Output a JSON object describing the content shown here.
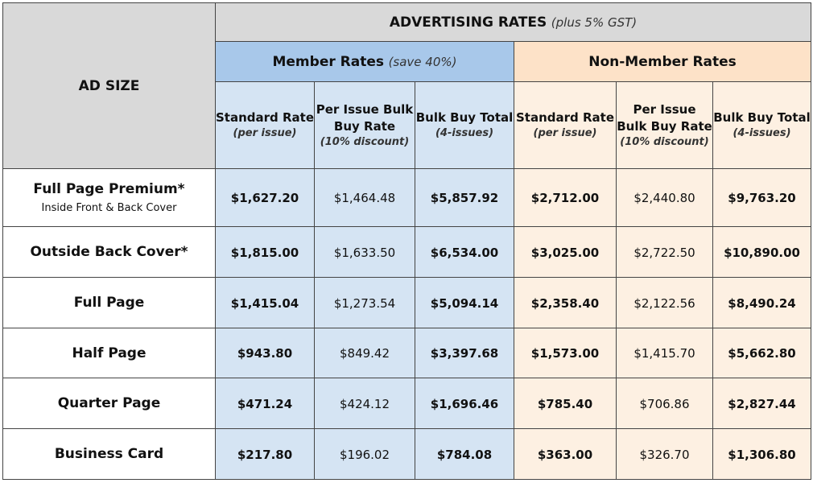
{
  "header": {
    "title": "ADVERTISING RATES",
    "title_note": "(plus 5% GST)",
    "ad_size": "AD SIZE",
    "groups": [
      {
        "name": "Member Rates",
        "note": "(save 40%)",
        "columns": [
          {
            "name": "Standard Rate",
            "note": "(per issue)"
          },
          {
            "name": "Per Issue Bulk Buy Rate",
            "note": "(10% discount)"
          },
          {
            "name": "Bulk Buy Total",
            "note": "(4-issues)"
          }
        ]
      },
      {
        "name": "Non-Member Rates",
        "columns": [
          {
            "name": "Standard Rate",
            "note": "(per issue)"
          },
          {
            "name": "Per Issue Bulk Buy Rate",
            "note": "(10% discount)"
          },
          {
            "name": "Bulk Buy Total",
            "note": "(4-issues)"
          }
        ]
      }
    ]
  },
  "table": {
    "rows": [
      {
        "label": "Full Page Premium*",
        "sublabel": "Inside Front & Back Cover",
        "cells": [
          "$1,627.20",
          "$1,464.48",
          "$5,857.92",
          "$2,712.00",
          "$2,440.80",
          "$9,763.20"
        ]
      },
      {
        "label": "Outside Back Cover*",
        "cells": [
          "$1,815.00",
          "$1,633.50",
          "$6,534.00",
          "$3,025.00",
          "$2,722.50",
          "$10,890.00"
        ]
      },
      {
        "label": "Full Page",
        "cells": [
          "$1,415.04",
          "$1,273.54",
          "$5,094.14",
          "$2,358.40",
          "$2,122.56",
          "$8,490.24"
        ]
      },
      {
        "label": "Half Page",
        "cells": [
          "$943.80",
          "$849.42",
          "$3,397.68",
          "$1,573.00",
          "$1,415.70",
          "$5,662.80"
        ]
      },
      {
        "label": "Quarter Page",
        "cells": [
          "$471.24",
          "$424.12",
          "$1,696.46",
          "$785.40",
          "$706.86",
          "$2,827.44"
        ]
      },
      {
        "label": "Business Card",
        "cells": [
          "$217.80",
          "$196.02",
          "$784.08",
          "$363.00",
          "$326.70",
          "$1,306.80"
        ]
      }
    ]
  }
}
